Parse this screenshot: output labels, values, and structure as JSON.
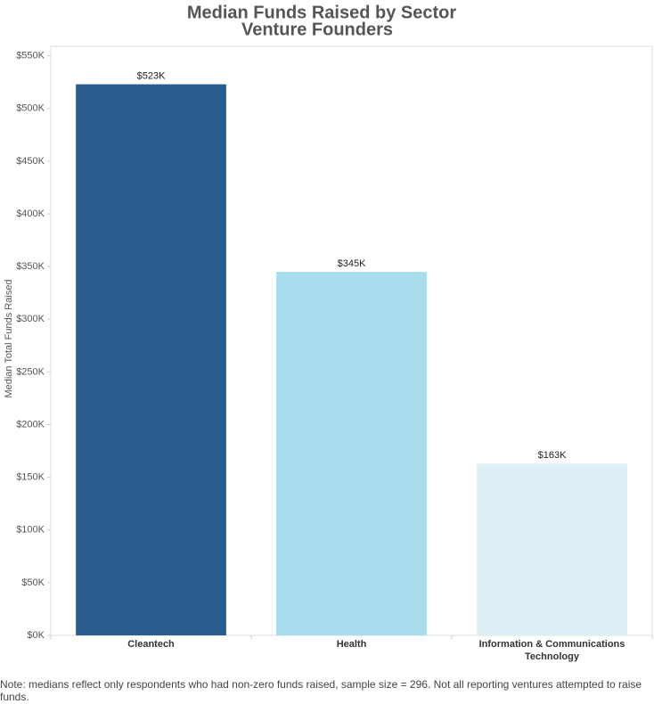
{
  "chart_data": {
    "type": "bar",
    "title": "Median Funds Raised by Sector",
    "subtitle": "Venture Founders",
    "y_label": "Median Total Funds Raised",
    "categories": [
      "Cleantech",
      "Health",
      "Information & Communications Technology"
    ],
    "values": [
      523000,
      345000,
      163000
    ],
    "value_labels": [
      "$523K",
      "$345K",
      "$163K"
    ],
    "colors": [
      "#2a5d8f",
      "#a8ddee",
      "#ddf0f6"
    ],
    "ylim": [
      0,
      559000
    ],
    "yticks": [
      {
        "value": 0,
        "label": "$0K"
      },
      {
        "value": 50000,
        "label": "$50K"
      },
      {
        "value": 100000,
        "label": "$100K"
      },
      {
        "value": 150000,
        "label": "$150K"
      },
      {
        "value": 200000,
        "label": "$200K"
      },
      {
        "value": 250000,
        "label": "$250K"
      },
      {
        "value": 300000,
        "label": "$300K"
      },
      {
        "value": 350000,
        "label": "$350K"
      },
      {
        "value": 400000,
        "label": "$400K"
      },
      {
        "value": 450000,
        "label": "$450K"
      },
      {
        "value": 500000,
        "label": "$500K"
      },
      {
        "value": 550000,
        "label": "$550K"
      }
    ],
    "grid": false,
    "note": "Note: medians reflect only respondents who had non-zero funds raised, sample size = 296. Not all reporting ventures attempted to raise funds."
  }
}
